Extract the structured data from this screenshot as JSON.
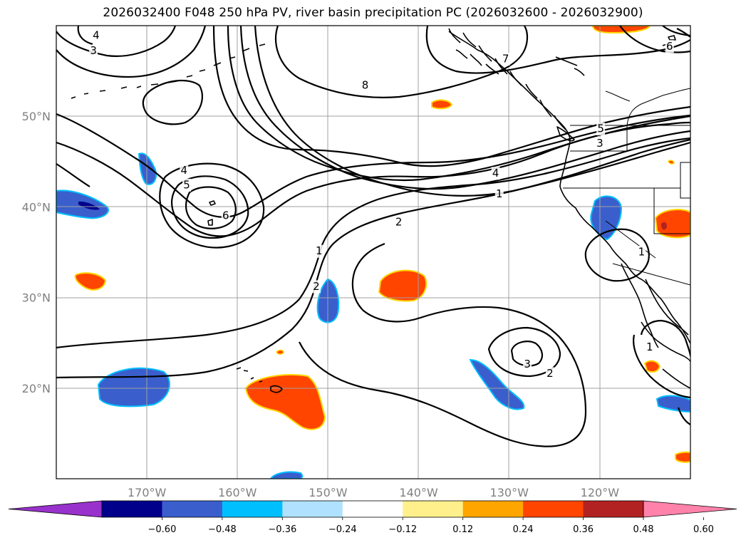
{
  "title": "2026032400 F048 250 hPa PV, river basin precipitation PC (2026032600 - 2026032900)",
  "map": {
    "lon_range": [
      -180,
      -110
    ],
    "lat_range": [
      10,
      60
    ],
    "lon_ticks": [
      {
        "value": -170,
        "label": "170°W"
      },
      {
        "value": -160,
        "label": "160°W"
      },
      {
        "value": -150,
        "label": "150°W"
      },
      {
        "value": -140,
        "label": "140°W"
      },
      {
        "value": -130,
        "label": "130°W"
      },
      {
        "value": -120,
        "label": "120°W"
      }
    ],
    "lat_ticks": [
      {
        "value": 50,
        "label": "50°N"
      },
      {
        "value": 40,
        "label": "40°N"
      },
      {
        "value": 30,
        "label": "30°N"
      },
      {
        "value": 20,
        "label": "20°N"
      }
    ],
    "grid": true,
    "contour_labels": [
      {
        "text": "4",
        "lon": -175.6,
        "lat": 58.9
      },
      {
        "text": "3",
        "lon": -175.9,
        "lat": 57.2
      },
      {
        "text": "8",
        "lon": -145.9,
        "lat": 53.4
      },
      {
        "text": "7",
        "lon": -130.4,
        "lat": 56.3
      },
      {
        "text": "6",
        "lon": -112.3,
        "lat": 57.7
      },
      {
        "text": "5",
        "lon": -119.9,
        "lat": 48.6
      },
      {
        "text": "3",
        "lon": -120.0,
        "lat": 47.0
      },
      {
        "text": "4",
        "lon": -165.9,
        "lat": 44.0
      },
      {
        "text": "5",
        "lon": -165.6,
        "lat": 42.4
      },
      {
        "text": "6",
        "lon": -161.3,
        "lat": 39.0
      },
      {
        "text": "4",
        "lon": -131.5,
        "lat": 43.7
      },
      {
        "text": "1",
        "lon": -131.1,
        "lat": 41.4
      },
      {
        "text": "2",
        "lon": -142.2,
        "lat": 38.3
      },
      {
        "text": "1",
        "lon": -151.0,
        "lat": 35.1
      },
      {
        "text": "2",
        "lon": -151.3,
        "lat": 31.2
      },
      {
        "text": "3",
        "lon": -128.0,
        "lat": 22.6
      },
      {
        "text": "2",
        "lon": -125.5,
        "lat": 21.6
      },
      {
        "text": "1",
        "lon": -114.5,
        "lat": 24.5
      },
      {
        "text": "1",
        "lon": -115.4,
        "lat": 35.0
      }
    ],
    "precip_colors": {
      "negative_fill": "#3a5fcd",
      "negative_edge": "#00bfff",
      "positive_fill": "#ff4500",
      "positive_edge": "#ffd700"
    }
  },
  "colorbar": {
    "colors": [
      "#9932cc",
      "#00008b",
      "#3a5fcd",
      "#00bfff",
      "#b0e2ff",
      "#ffffff",
      "#fff08c",
      "#ffa500",
      "#ff4500",
      "#b22222",
      "#ff82ab"
    ],
    "ticks": [
      "−0.60",
      "−0.48",
      "−0.36",
      "−0.24",
      "−0.12",
      "0.12",
      "0.24",
      "0.36",
      "0.48",
      "0.60"
    ],
    "extend": "both"
  }
}
